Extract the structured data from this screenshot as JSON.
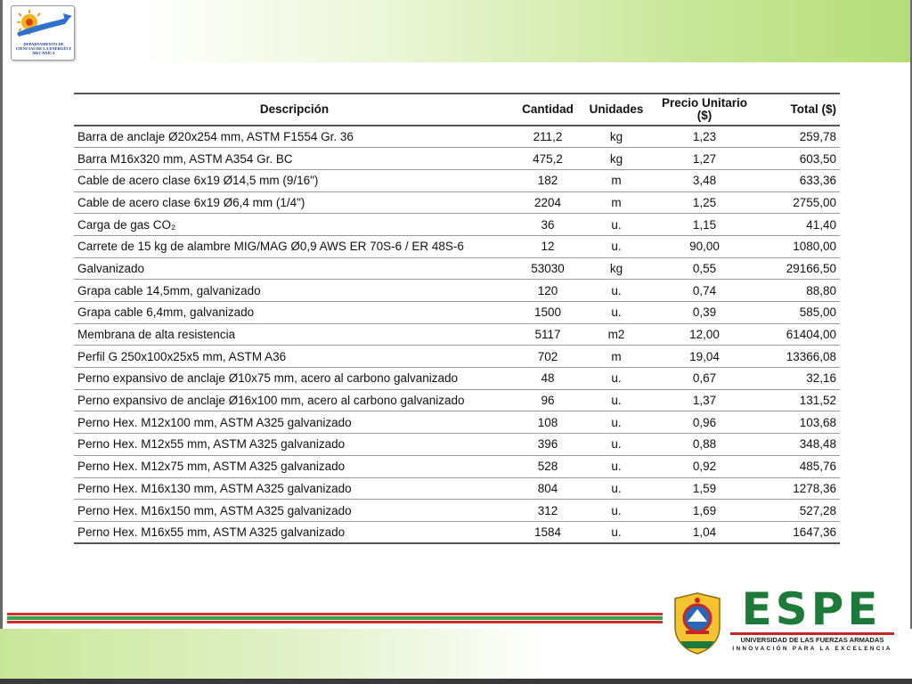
{
  "header": {
    "logo_text": "DEPARTAMENTO DE CIENCIAS DE LA ENERGÍA Y MECÁNICA"
  },
  "table": {
    "columns": {
      "description": "Descripción",
      "quantity": "Cantidad",
      "units": "Unidades",
      "unit_price_line1": "Precio Unitario",
      "unit_price_line2": "($)",
      "total": "Total ($)"
    },
    "rows": [
      {
        "description": "Barra de anclaje Ø20x254 mm, ASTM F1554 Gr. 36",
        "quantity": "211,2",
        "units": "kg",
        "unit_price": "1,23",
        "total": "259,78"
      },
      {
        "description": "Barra M16x320 mm,  ASTM A354 Gr. BC",
        "quantity": "475,2",
        "units": "kg",
        "unit_price": "1,27",
        "total": "603,50"
      },
      {
        "description": "Cable de acero clase 6x19 Ø14,5 mm (9/16\")",
        "quantity": "182",
        "units": "m",
        "unit_price": "3,48",
        "total": "633,36"
      },
      {
        "description": "Cable de acero clase 6x19 Ø6,4 mm (1/4\")",
        "quantity": "2204",
        "units": "m",
        "unit_price": "1,25",
        "total": "2755,00"
      },
      {
        "description": "Carga de gas CO₂",
        "quantity": "36",
        "units": "u.",
        "unit_price": "1,15",
        "total": "41,40"
      },
      {
        "description": "Carrete de 15 kg de alambre MIG/MAG Ø0,9 AWS ER 70S-6 / ER 48S-6",
        "quantity": "12",
        "units": "u.",
        "unit_price": "90,00",
        "total": "1080,00"
      },
      {
        "description": "Galvanizado",
        "quantity": "53030",
        "units": "kg",
        "unit_price": "0,55",
        "total": "29166,50"
      },
      {
        "description": "Grapa cable 14,5mm, galvanizado",
        "quantity": "120",
        "units": "u.",
        "unit_price": "0,74",
        "total": "88,80"
      },
      {
        "description": "Grapa cable 6,4mm, galvanizado",
        "quantity": "1500",
        "units": "u.",
        "unit_price": "0,39",
        "total": "585,00"
      },
      {
        "description": "Membrana de alta resistencia",
        "quantity": "5117",
        "units": "m2",
        "unit_price": "12,00",
        "total": "61404,00"
      },
      {
        "description": "Perfil G 250x100x25x5 mm, ASTM A36",
        "quantity": "702",
        "units": "m",
        "unit_price": "19,04",
        "total": "13366,08"
      },
      {
        "description": "Perno expansivo de anclaje Ø10x75 mm, acero al carbono galvanizado",
        "quantity": "48",
        "units": "u.",
        "unit_price": "0,67",
        "total": "32,16"
      },
      {
        "description": "Perno expansivo de anclaje Ø16x100 mm, acero al carbono galvanizado",
        "quantity": "96",
        "units": "u.",
        "unit_price": "1,37",
        "total": "131,52"
      },
      {
        "description": "Perno Hex. M12x100 mm, ASTM A325 galvanizado",
        "quantity": "108",
        "units": "u.",
        "unit_price": "0,96",
        "total": "103,68"
      },
      {
        "description": "Perno Hex. M12x55 mm, ASTM A325 galvanizado",
        "quantity": "396",
        "units": "u.",
        "unit_price": "0,88",
        "total": "348,48"
      },
      {
        "description": "Perno Hex. M12x75 mm, ASTM A325 galvanizado",
        "quantity": "528",
        "units": "u.",
        "unit_price": "0,92",
        "total": "485,76"
      },
      {
        "description": "Perno Hex. M16x130 mm, ASTM A325 galvanizado",
        "quantity": "804",
        "units": "u.",
        "unit_price": "1,59",
        "total": "1278,36"
      },
      {
        "description": "Perno Hex. M16x150 mm, ASTM A325 galvanizado",
        "quantity": "312",
        "units": "u.",
        "unit_price": "1,69",
        "total": "527,28"
      },
      {
        "description": "Perno Hex. M16x55 mm, ASTM A325 galvanizado",
        "quantity": "1584",
        "units": "u.",
        "unit_price": "1,04",
        "total": "1647,36"
      }
    ]
  },
  "footer": {
    "brand": "ESPE",
    "university": "UNIVERSIDAD DE LAS FUERZAS ARMADAS",
    "motto": "INNOVACIÓN PARA LA EXCELENCIA",
    "colors": {
      "brand_green": "#1e7a3a",
      "brand_red": "#c62828",
      "stripe_green": "#3aa04a",
      "stripe_red": "#d32f2f"
    }
  }
}
